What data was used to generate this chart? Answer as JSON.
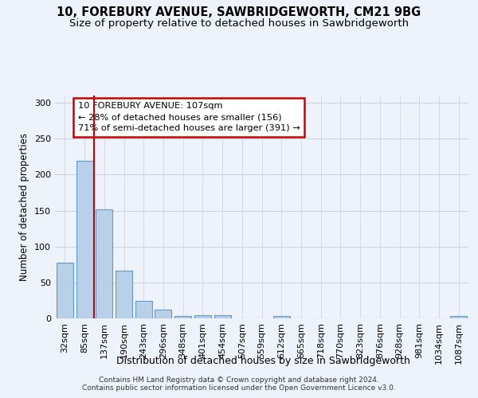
{
  "title1": "10, FOREBURY AVENUE, SAWBRIDGEWORTH, CM21 9BG",
  "title2": "Size of property relative to detached houses in Sawbridgeworth",
  "xlabel": "Distribution of detached houses by size in Sawbridgeworth",
  "ylabel": "Number of detached properties",
  "bar_labels": [
    "32sqm",
    "85sqm",
    "137sqm",
    "190sqm",
    "243sqm",
    "296sqm",
    "348sqm",
    "401sqm",
    "454sqm",
    "507sqm",
    "559sqm",
    "612sqm",
    "665sqm",
    "718sqm",
    "770sqm",
    "823sqm",
    "876sqm",
    "928sqm",
    "981sqm",
    "1034sqm",
    "1087sqm"
  ],
  "bar_values": [
    77,
    219,
    152,
    66,
    24,
    12,
    3,
    4,
    4,
    0,
    0,
    3,
    0,
    0,
    0,
    0,
    0,
    0,
    0,
    0,
    3
  ],
  "bar_color": "#b8d0e8",
  "bar_edgecolor": "#6699cc",
  "vline_x_idx": 1.5,
  "vline_color": "#cc0000",
  "annotation_text": "10 FOREBURY AVENUE: 107sqm\n← 28% of detached houses are smaller (156)\n71% of semi-detached houses are larger (391) →",
  "annotation_box_edgecolor": "#cc0000",
  "annotation_box_facecolor": "#ffffff",
  "ylim": [
    0,
    310
  ],
  "yticks": [
    0,
    50,
    100,
    150,
    200,
    250,
    300
  ],
  "footer": "Contains HM Land Registry data © Crown copyright and database right 2024.\nContains public sector information licensed under the Open Government Licence v3.0.",
  "bg_color": "#eef2fa",
  "grid_color": "#c8d0e0",
  "title1_fontsize": 10.5,
  "title2_fontsize": 9.5,
  "xlabel_fontsize": 9,
  "ylabel_fontsize": 8.5,
  "tick_fontsize": 8,
  "footer_fontsize": 6.5
}
